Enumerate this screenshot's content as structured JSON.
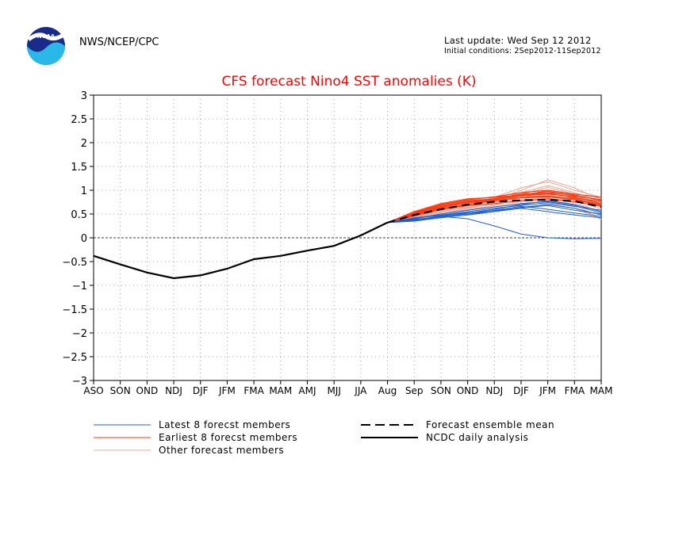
{
  "header": {
    "org": "NWS/NCEP/CPC",
    "last_update": "Last update: Wed Sep 12 2012",
    "initial_conditions": "Initial conditions: 2Sep2012-11Sep2012"
  },
  "colors": {
    "latest": "#1f5fcf",
    "earliest": "#ff3a10",
    "other": "#e8a898",
    "mean": "#000000",
    "obs": "#000000",
    "title": "#ff0000"
  },
  "logo": {
    "icon": "noaa-logo"
  },
  "chart_data": {
    "type": "line",
    "title": "CFS forecast Nino4 SST anomalies (K)",
    "categories": [
      "ASO",
      "SON",
      "OND",
      "NDJ",
      "DJF",
      "JFM",
      "FMA",
      "MAM",
      "AMJ",
      "MJJ",
      "JJA",
      "Aug",
      "Sep",
      "SON",
      "OND",
      "NDJ",
      "DJF",
      "JFM",
      "FMA",
      "MAM"
    ],
    "ylim": [
      -3,
      3
    ],
    "yticks": [
      3,
      2.5,
      2,
      1.5,
      1,
      0.5,
      0,
      -0.5,
      -1,
      -1.5,
      -2,
      -2.5,
      -3
    ],
    "grid": true,
    "zero_line": true,
    "legend": [
      {
        "label": "Latest 8 forecst members",
        "color_key": "latest",
        "style": "thin"
      },
      {
        "label": "Earliest 8 forecst members",
        "color_key": "earliest",
        "style": "thin"
      },
      {
        "label": "Other forecast members",
        "color_key": "other",
        "style": "thin"
      },
      {
        "label": "Forecast ensemble mean",
        "color_key": "mean",
        "style": "dashed"
      },
      {
        "label": "NCDC daily analysis",
        "color_key": "obs",
        "style": "solid"
      }
    ],
    "observed": {
      "name": "NCDC daily analysis",
      "values": [
        -0.38,
        -0.56,
        -0.73,
        -0.85,
        -0.79,
        -0.65,
        -0.45,
        -0.38,
        -0.27,
        -0.17,
        0.05,
        0.32
      ]
    },
    "ensemble_mean": {
      "name": "Forecast ensemble mean",
      "start_index": 11,
      "values": [
        0.32,
        0.48,
        0.6,
        0.7,
        0.76,
        0.79,
        0.8,
        0.77,
        0.65
      ]
    },
    "latest_members": [
      {
        "start_index": 11,
        "values": [
          0.32,
          0.38,
          0.45,
          0.4,
          0.25,
          0.08,
          0.0,
          -0.02,
          -0.01
        ]
      },
      {
        "start_index": 11,
        "values": [
          0.32,
          0.35,
          0.42,
          0.48,
          0.55,
          0.62,
          0.55,
          0.48,
          0.42
        ]
      },
      {
        "start_index": 11,
        "values": [
          0.32,
          0.36,
          0.44,
          0.52,
          0.6,
          0.7,
          0.78,
          0.7,
          0.55
        ]
      },
      {
        "start_index": 11,
        "values": [
          0.32,
          0.4,
          0.5,
          0.58,
          0.65,
          0.72,
          0.76,
          0.68,
          0.52
        ]
      },
      {
        "start_index": 11,
        "values": [
          0.32,
          0.37,
          0.46,
          0.5,
          0.55,
          0.64,
          0.7,
          0.62,
          0.48
        ]
      },
      {
        "start_index": 11,
        "values": [
          0.32,
          0.42,
          0.48,
          0.55,
          0.62,
          0.68,
          0.74,
          0.66,
          0.58
        ]
      },
      {
        "start_index": 11,
        "values": [
          0.32,
          0.39,
          0.44,
          0.5,
          0.58,
          0.66,
          0.6,
          0.52,
          0.45
        ]
      },
      {
        "start_index": 11,
        "values": [
          0.32,
          0.41,
          0.47,
          0.53,
          0.57,
          0.63,
          0.68,
          0.58,
          0.5
        ]
      }
    ],
    "earliest_members": [
      {
        "start_index": 11,
        "values": [
          0.32,
          0.52,
          0.68,
          0.78,
          0.82,
          0.92,
          0.95,
          0.9,
          0.78
        ]
      },
      {
        "start_index": 11,
        "values": [
          0.32,
          0.48,
          0.62,
          0.7,
          0.78,
          0.85,
          0.88,
          0.82,
          0.7
        ]
      },
      {
        "start_index": 11,
        "values": [
          0.32,
          0.55,
          0.72,
          0.82,
          0.85,
          0.9,
          0.98,
          0.88,
          0.8
        ]
      },
      {
        "start_index": 11,
        "values": [
          0.32,
          0.5,
          0.65,
          0.75,
          0.8,
          0.88,
          0.92,
          0.86,
          0.72
        ]
      },
      {
        "start_index": 11,
        "values": [
          0.32,
          0.46,
          0.6,
          0.68,
          0.72,
          0.78,
          0.82,
          0.76,
          0.66
        ]
      },
      {
        "start_index": 11,
        "values": [
          0.32,
          0.53,
          0.7,
          0.8,
          0.86,
          0.95,
          1.0,
          0.92,
          0.85
        ]
      },
      {
        "start_index": 11,
        "values": [
          0.32,
          0.49,
          0.64,
          0.74,
          0.78,
          0.84,
          0.86,
          0.8,
          0.68
        ]
      },
      {
        "start_index": 11,
        "values": [
          0.32,
          0.51,
          0.66,
          0.76,
          0.82,
          0.9,
          0.94,
          0.84,
          0.76
        ]
      }
    ],
    "other_members": [
      {
        "start_index": 11,
        "values": [
          0.32,
          0.45,
          0.58,
          0.7,
          0.85,
          1.05,
          1.18,
          1.0,
          0.85
        ]
      },
      {
        "start_index": 11,
        "values": [
          0.32,
          0.42,
          0.52,
          0.62,
          0.72,
          0.85,
          0.9,
          0.8,
          0.6
        ]
      },
      {
        "start_index": 11,
        "values": [
          0.32,
          0.47,
          0.6,
          0.68,
          0.78,
          0.95,
          1.1,
          0.95,
          0.78
        ]
      },
      {
        "start_index": 11,
        "values": [
          0.32,
          0.4,
          0.5,
          0.6,
          0.65,
          0.7,
          0.72,
          0.62,
          0.4
        ]
      },
      {
        "start_index": 11,
        "values": [
          0.32,
          0.44,
          0.56,
          0.65,
          0.75,
          0.88,
          1.0,
          0.9,
          0.72
        ]
      },
      {
        "start_index": 11,
        "values": [
          0.32,
          0.5,
          0.62,
          0.72,
          0.8,
          1.0,
          1.22,
          1.05,
          0.8
        ]
      },
      {
        "start_index": 11,
        "values": [
          0.32,
          0.43,
          0.55,
          0.64,
          0.7,
          0.8,
          0.84,
          0.74,
          0.55
        ]
      },
      {
        "start_index": 11,
        "values": [
          0.32,
          0.46,
          0.58,
          0.66,
          0.74,
          0.92,
          1.06,
          0.92,
          0.7
        ]
      },
      {
        "start_index": 11,
        "values": [
          0.32,
          0.41,
          0.53,
          0.6,
          0.68,
          0.76,
          0.8,
          0.7,
          0.38
        ]
      },
      {
        "start_index": 11,
        "values": [
          0.32,
          0.48,
          0.61,
          0.7,
          0.77,
          0.9,
          0.98,
          0.86,
          0.65
        ]
      }
    ]
  }
}
